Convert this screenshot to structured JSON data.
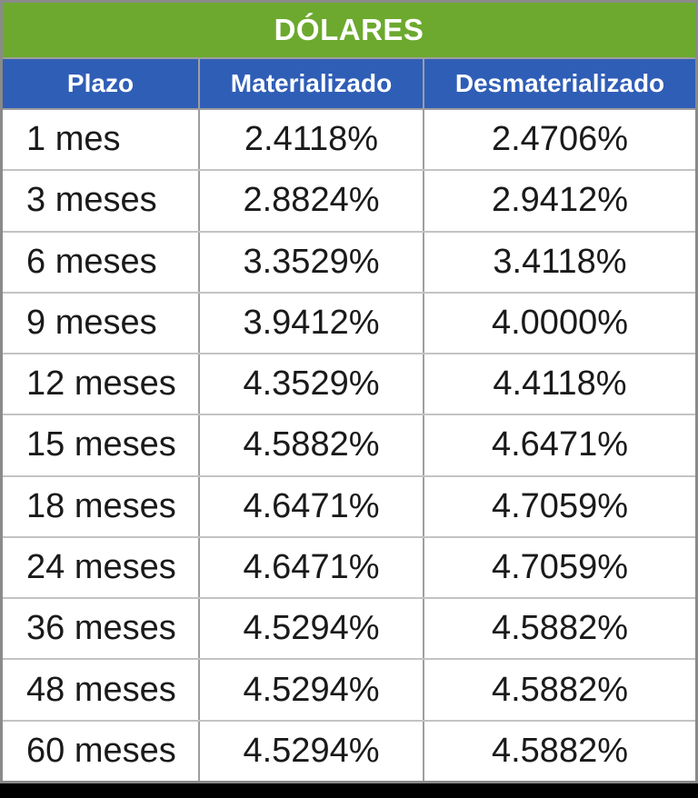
{
  "colors": {
    "title_bg": "#6CA92E",
    "header_bg": "#2F5EB6",
    "title_text": "#FFFFFF",
    "header_text": "#FFFFFF",
    "cell_text": "#1A1A1A",
    "outer_border": "#8A8A8A",
    "column_divider": "#9E9E9E",
    "row_divider": "#C3C3C3",
    "bottom_bar": "#000000"
  },
  "chart_data": {
    "type": "table",
    "title": "DÓLARES",
    "columns": [
      "Plazo",
      "Materializado",
      "Desmaterializado"
    ],
    "rows": [
      [
        "1 mes",
        "2.4118%",
        "2.4706%"
      ],
      [
        "3 meses",
        "2.8824%",
        "2.9412%"
      ],
      [
        "6 meses",
        "3.3529%",
        "3.4118%"
      ],
      [
        "9 meses",
        "3.9412%",
        "4.0000%"
      ],
      [
        "12 meses",
        "4.3529%",
        "4.4118%"
      ],
      [
        "15 meses",
        "4.5882%",
        "4.6471%"
      ],
      [
        "18 meses",
        "4.6471%",
        "4.7059%"
      ],
      [
        "24 meses",
        "4.6471%",
        "4.7059%"
      ],
      [
        "36 meses",
        "4.5294%",
        "4.5882%"
      ],
      [
        "48 meses",
        "4.5294%",
        "4.5882%"
      ],
      [
        "60 meses",
        "4.5294%",
        "4.5882%"
      ]
    ]
  }
}
